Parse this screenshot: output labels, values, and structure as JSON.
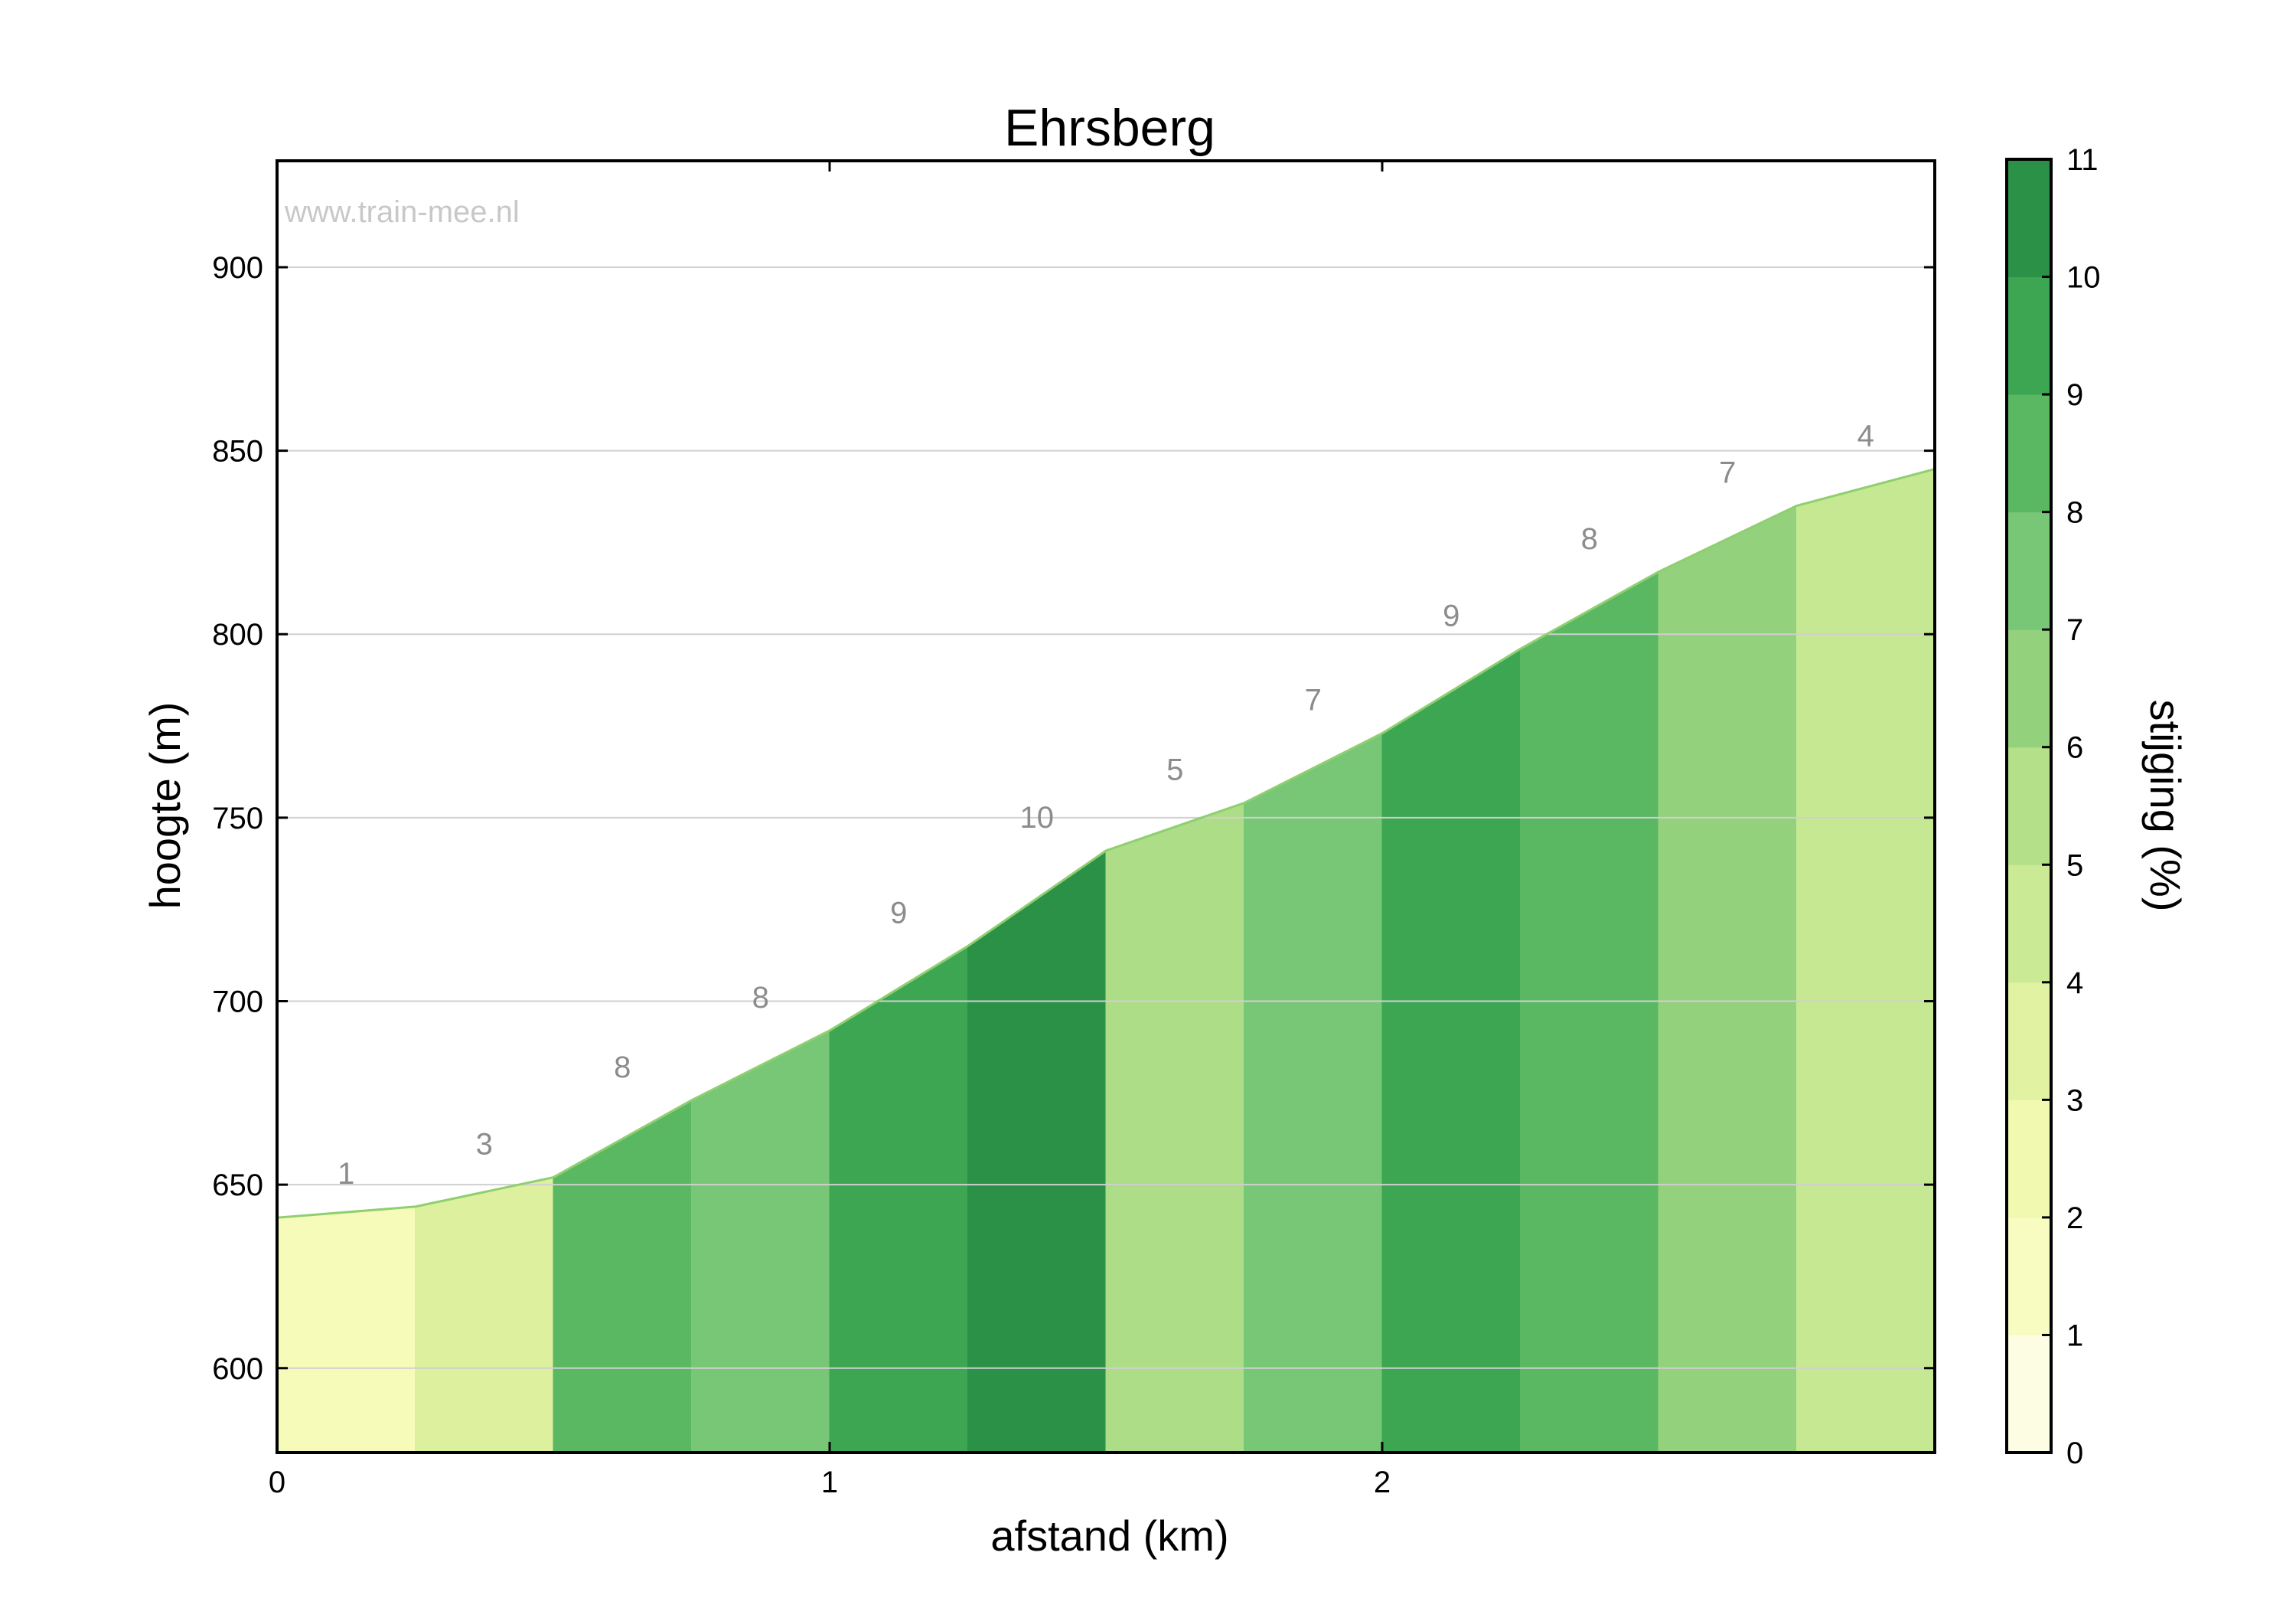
{
  "chart_data": {
    "type": "area",
    "title": "Ehrsberg",
    "watermark": "www.train-mee.nl",
    "xlabel": "afstand (km)",
    "ylabel": "hoogte (m)",
    "xlim": [
      0,
      3.0
    ],
    "ylim": [
      577,
      929
    ],
    "xticks": [
      0,
      1,
      2
    ],
    "yticks": [
      600,
      650,
      700,
      750,
      800,
      850,
      900
    ],
    "grid": "horizontal",
    "profile": {
      "x": [
        0,
        0.25,
        0.5,
        0.75,
        1.0,
        1.25,
        1.5,
        1.75,
        2.0,
        2.25,
        2.5,
        2.75,
        3.0
      ],
      "y": [
        641,
        644,
        652,
        673,
        692,
        715,
        741,
        754,
        773,
        796,
        817,
        835,
        845
      ]
    },
    "segments": [
      {
        "grade": 1,
        "color": "#f7fbb9"
      },
      {
        "grade": 3,
        "color": "#ddf09d"
      },
      {
        "grade": 8,
        "color": "#5ab762"
      },
      {
        "grade": 8,
        "color": "#78c777"
      },
      {
        "grade": 9,
        "color": "#3da653"
      },
      {
        "grade": 10,
        "color": "#2a9147"
      },
      {
        "grade": 5,
        "color": "#addd86"
      },
      {
        "grade": 7,
        "color": "#78c777"
      },
      {
        "grade": 9,
        "color": "#3da653"
      },
      {
        "grade": 8,
        "color": "#5ab762"
      },
      {
        "grade": 7,
        "color": "#93d17c"
      },
      {
        "grade": 4,
        "color": "#c6e892"
      }
    ],
    "line_color": "#8fcf70",
    "colorbar": {
      "label": "stijging (%)",
      "min": 0,
      "max": 11,
      "ticks": [
        0,
        1,
        2,
        3,
        4,
        5,
        6,
        7,
        8,
        9,
        10,
        11
      ],
      "colors": [
        "#fdfde3",
        "#f8fcc0",
        "#f1f9b0",
        "#e1f3a2",
        "#cbea95",
        "#b4e08a",
        "#93d17c",
        "#78c777",
        "#5ab762",
        "#3da653",
        "#2a9147"
      ]
    }
  }
}
